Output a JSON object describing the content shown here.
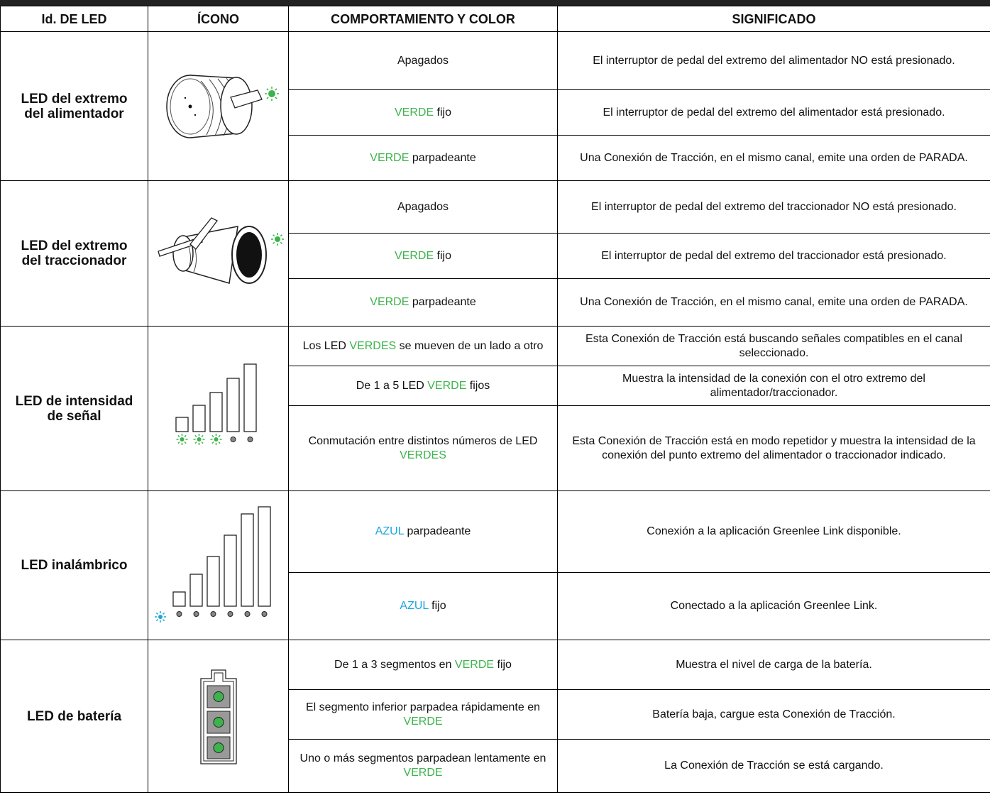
{
  "header": {
    "columns": [
      "Id. DE LED",
      "ÍCONO",
      "COMPORTAMIENTO Y COLOR",
      "SIGNIFICADO"
    ]
  },
  "colors": {
    "green": "#3cb44b",
    "blue": "#1ba6df"
  },
  "table": {
    "groups": [
      {
        "led": "LED del extremo del alimentador",
        "rows": [
          {
            "behavior": [
              {
                "text": "Apagados"
              }
            ],
            "meaning": "El interruptor de pedal del extremo del alimentador NO está presionado."
          },
          {
            "behavior": [
              {
                "text": "VERDE",
                "color": "green"
              },
              {
                "text": " fijo"
              }
            ],
            "meaning": "El interruptor de pedal del extremo del alimentador está presionado."
          },
          {
            "behavior": [
              {
                "text": "VERDE",
                "color": "green"
              },
              {
                "text": " parpadeante"
              }
            ],
            "meaning": "Una Conexión de Tracción, en el mismo canal, emite una orden de PARADA."
          }
        ]
      },
      {
        "led": "LED del extremo del traccionador",
        "rows": [
          {
            "behavior": [
              {
                "text": "Apagados"
              }
            ],
            "meaning": "El interruptor de pedal del extremo del traccionador NO está presionado."
          },
          {
            "behavior": [
              {
                "text": "VERDE",
                "color": "green"
              },
              {
                "text": " fijo"
              }
            ],
            "meaning": "El interruptor de pedal del extremo del traccionador está presionado."
          },
          {
            "behavior": [
              {
                "text": "VERDE",
                "color": "green"
              },
              {
                "text": " parpadeante"
              }
            ],
            "meaning": "Una Conexión de Tracción, en el mismo canal, emite una orden de PARADA."
          }
        ]
      },
      {
        "led": "LED de intensidad de señal",
        "rows": [
          {
            "behavior": [
              {
                "text": "Los LED "
              },
              {
                "text": "VERDES",
                "color": "green"
              },
              {
                "text": " se mueven de un lado a otro"
              }
            ],
            "meaning": "Esta Conexión de Tracción está buscando señales compatibles en el canal seleccionado."
          },
          {
            "behavior": [
              {
                "text": "De 1 a 5 LED "
              },
              {
                "text": "VERDE",
                "color": "green"
              },
              {
                "text": " fijos"
              }
            ],
            "meaning": "Muestra la intensidad de la conexión con el otro extremo del alimentador/traccionador."
          },
          {
            "behavior": [
              {
                "text": "Conmutación entre distintos números de LED "
              },
              {
                "text": "VERDES",
                "color": "green"
              }
            ],
            "meaning": "Esta Conexión de Tracción está en modo repetidor y muestra la intensidad de la conexión del punto extremo del alimentador o traccionador indicado."
          }
        ]
      },
      {
        "led": "LED inalámbrico",
        "rows": [
          {
            "behavior": [
              {
                "text": "AZUL",
                "color": "blue"
              },
              {
                "text": " parpadeante"
              }
            ],
            "meaning": "Conexión a la aplicación Greenlee Link disponible."
          },
          {
            "behavior": [
              {
                "text": "AZUL",
                "color": "blue"
              },
              {
                "text": " fijo"
              }
            ],
            "meaning": "Conectado a la aplicación Greenlee Link."
          }
        ]
      },
      {
        "led": "LED de batería",
        "rows": [
          {
            "behavior": [
              {
                "text": "De 1 a 3 segmentos en "
              },
              {
                "text": "VERDE",
                "color": "green"
              },
              {
                "text": " fijo"
              }
            ],
            "meaning": "Muestra el nivel de carga de la batería."
          },
          {
            "behavior": [
              {
                "text": "El segmento inferior parpadea rápidamente en "
              },
              {
                "text": "VERDE",
                "color": "green"
              }
            ],
            "meaning": "Batería baja, cargue esta Conexión de Tracción."
          },
          {
            "behavior": [
              {
                "text": "Uno o más segmentos parpadean lentamente en "
              },
              {
                "text": "VERDE",
                "color": "green"
              }
            ],
            "meaning": "La Conexión de Tracción se está cargando."
          }
        ]
      }
    ]
  }
}
